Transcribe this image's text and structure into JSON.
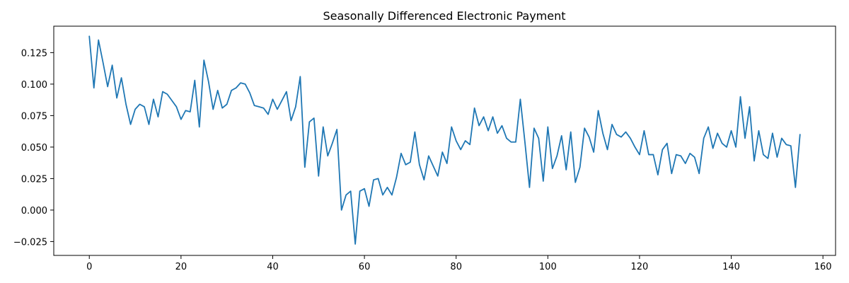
{
  "chart_data": {
    "type": "line",
    "title": "Seasonally Differenced Electronic Payment",
    "xlabel": "",
    "ylabel": "",
    "xlim": [
      -7.75,
      162.75
    ],
    "ylim": [
      -0.036,
      0.146
    ],
    "xticks": [
      0,
      20,
      40,
      60,
      80,
      100,
      120,
      140,
      160
    ],
    "xtick_labels": [
      "0",
      "20",
      "40",
      "60",
      "80",
      "100",
      "120",
      "140",
      "160"
    ],
    "yticks": [
      -0.025,
      0.0,
      0.025,
      0.05,
      0.075,
      0.1,
      0.125
    ],
    "ytick_labels": [
      "−0.025",
      "0.000",
      "0.025",
      "0.050",
      "0.075",
      "0.100",
      "0.125"
    ],
    "grid": false,
    "line_color": "#1f77b4",
    "series": [
      {
        "x_start": 0,
        "x_step": 1,
        "values": [
          0.138,
          0.097,
          0.135,
          0.117,
          0.098,
          0.115,
          0.089,
          0.105,
          0.084,
          0.068,
          0.08,
          0.084,
          0.082,
          0.068,
          0.088,
          0.074,
          0.094,
          0.092,
          0.087,
          0.082,
          0.072,
          0.079,
          0.078,
          0.103,
          0.066,
          0.119,
          0.102,
          0.08,
          0.095,
          0.081,
          0.084,
          0.095,
          0.097,
          0.101,
          0.1,
          0.093,
          0.083,
          0.082,
          0.081,
          0.076,
          0.088,
          0.08,
          0.087,
          0.094,
          0.071,
          0.082,
          0.106,
          0.034,
          0.07,
          0.073,
          0.027,
          0.066,
          0.043,
          0.053,
          0.064,
          0.0,
          0.012,
          0.015,
          -0.027,
          0.015,
          0.017,
          0.003,
          0.024,
          0.025,
          0.012,
          0.018,
          0.012,
          0.026,
          0.045,
          0.036,
          0.038,
          0.062,
          0.036,
          0.024,
          0.043,
          0.035,
          0.027,
          0.046,
          0.037,
          0.066,
          0.055,
          0.048,
          0.055,
          0.052,
          0.081,
          0.067,
          0.074,
          0.063,
          0.074,
          0.061,
          0.067,
          0.057,
          0.054,
          0.054,
          0.088,
          0.054,
          0.018,
          0.065,
          0.057,
          0.023,
          0.066,
          0.033,
          0.043,
          0.059,
          0.032,
          0.062,
          0.022,
          0.034,
          0.065,
          0.058,
          0.046,
          0.079,
          0.061,
          0.048,
          0.068,
          0.06,
          0.058,
          0.062,
          0.057,
          0.05,
          0.044,
          0.063,
          0.044,
          0.044,
          0.028,
          0.048,
          0.053,
          0.029,
          0.044,
          0.043,
          0.037,
          0.045,
          0.042,
          0.029,
          0.057,
          0.066,
          0.049,
          0.061,
          0.053,
          0.05,
          0.063,
          0.05,
          0.09,
          0.057,
          0.082,
          0.039,
          0.063,
          0.044,
          0.041,
          0.061,
          0.042,
          0.057,
          0.052,
          0.051,
          0.018,
          0.06
        ]
      }
    ]
  }
}
